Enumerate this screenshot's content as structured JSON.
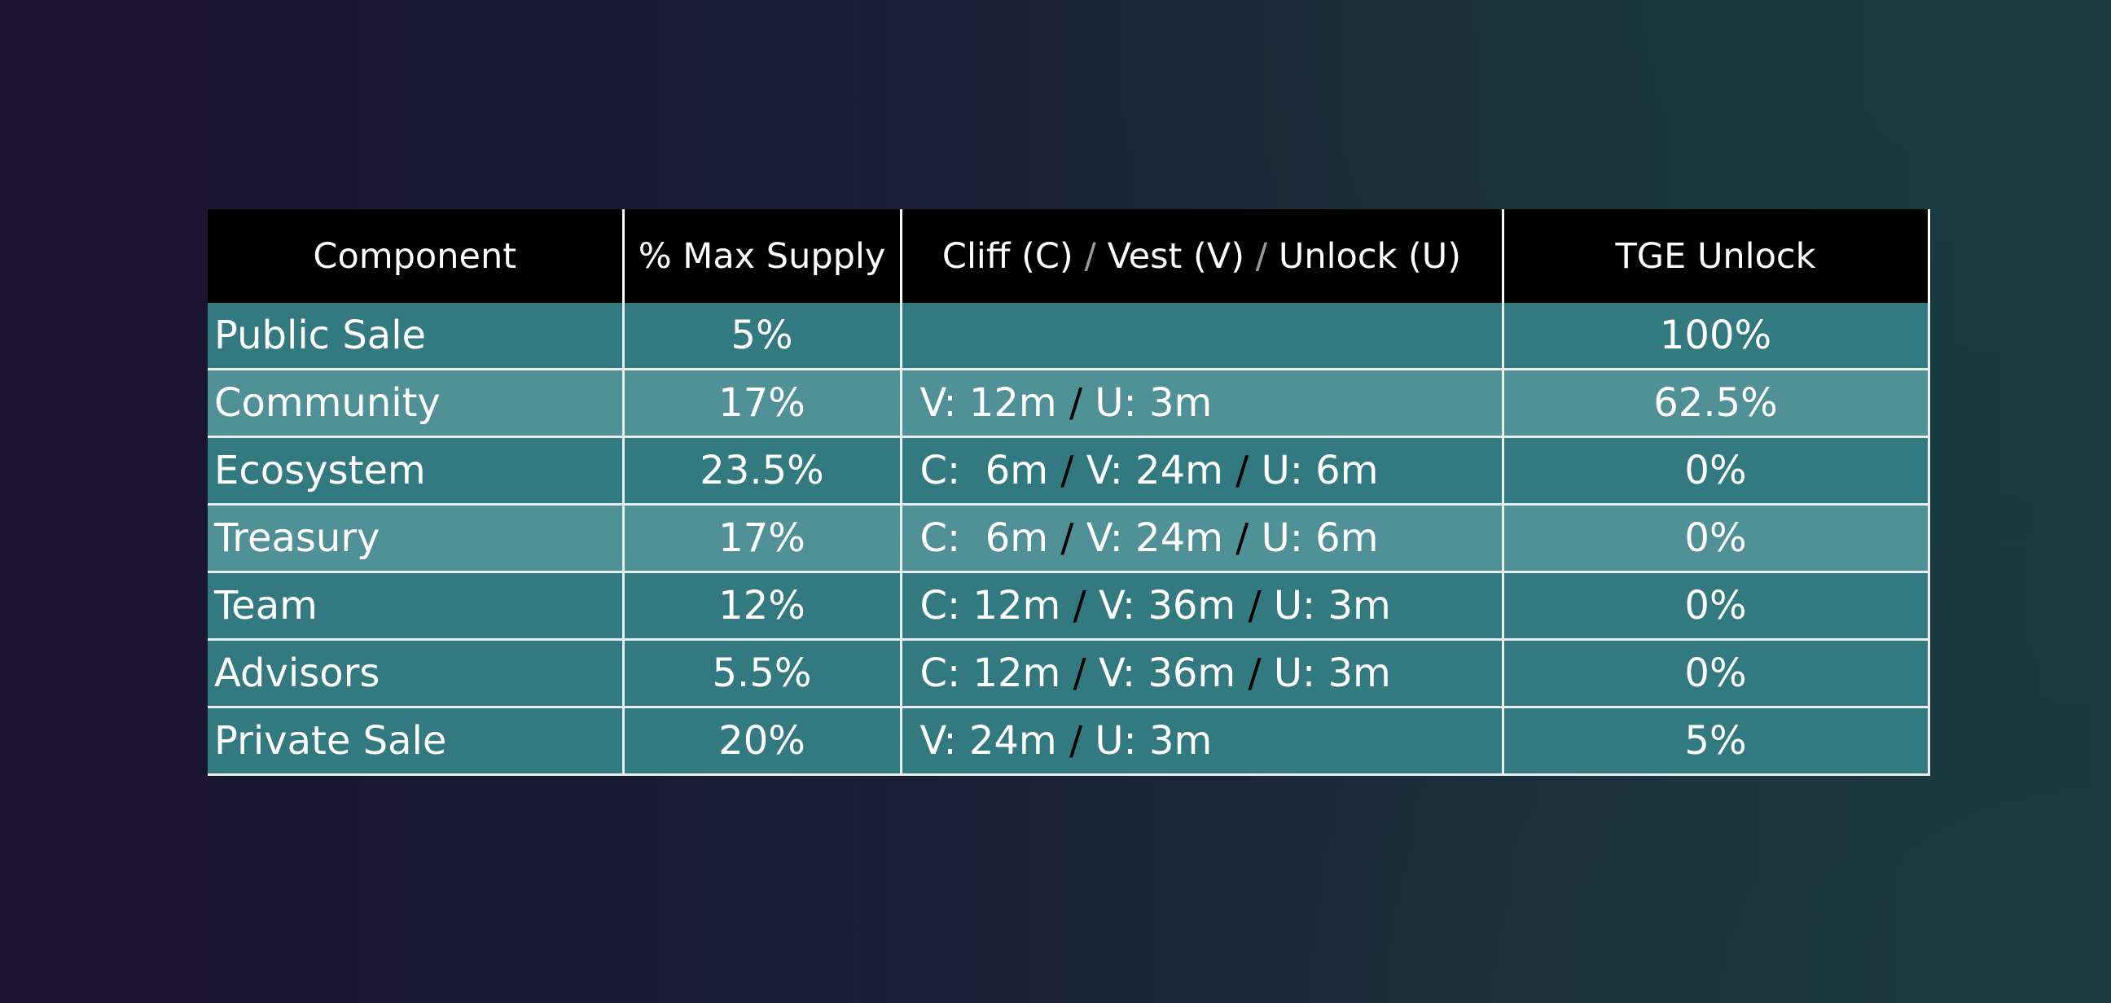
{
  "table": {
    "headers": {
      "component": "Component",
      "supply": "% Max Supply",
      "schedule_parts": [
        "Cliff (C)",
        "/",
        "Vest (V)",
        "/",
        "Unlock (U)"
      ],
      "tge": "TGE Unlock"
    },
    "rows": [
      {
        "component": "Public Sale",
        "supply": "5%",
        "schedule": [],
        "tge": "100%"
      },
      {
        "component": "Community",
        "supply": "17%",
        "schedule": [
          "V: 12m",
          "/",
          "U: 3m"
        ],
        "tge": "62.5%"
      },
      {
        "component": "Ecosystem",
        "supply": "23.5%",
        "schedule": [
          "C:  6m",
          "/",
          "V: 24m",
          "/",
          "U: 6m"
        ],
        "tge": "0%"
      },
      {
        "component": "Treasury",
        "supply": "17%",
        "schedule": [
          "C:  6m",
          "/",
          "V: 24m",
          "/",
          "U: 6m"
        ],
        "tge": "0%"
      },
      {
        "component": "Team",
        "supply": "12%",
        "schedule": [
          "C: 12m",
          "/",
          "V: 36m",
          "/",
          "U: 3m"
        ],
        "tge": "0%"
      },
      {
        "component": "Advisors",
        "supply": "5.5%",
        "schedule": [
          "C: 12m",
          "/",
          "V: 36m",
          "/",
          "U: 3m"
        ],
        "tge": "0%"
      },
      {
        "component": "Private Sale",
        "supply": "20%",
        "schedule": [
          "V: 24m",
          "/",
          "U: 3m"
        ],
        "tge": "5%"
      }
    ]
  },
  "colors": {
    "header_bg": "#000000",
    "row_dark": "#337a80",
    "row_light": "#509097",
    "header_separator": "#9a9a9a",
    "cell_separator": "#000000"
  }
}
